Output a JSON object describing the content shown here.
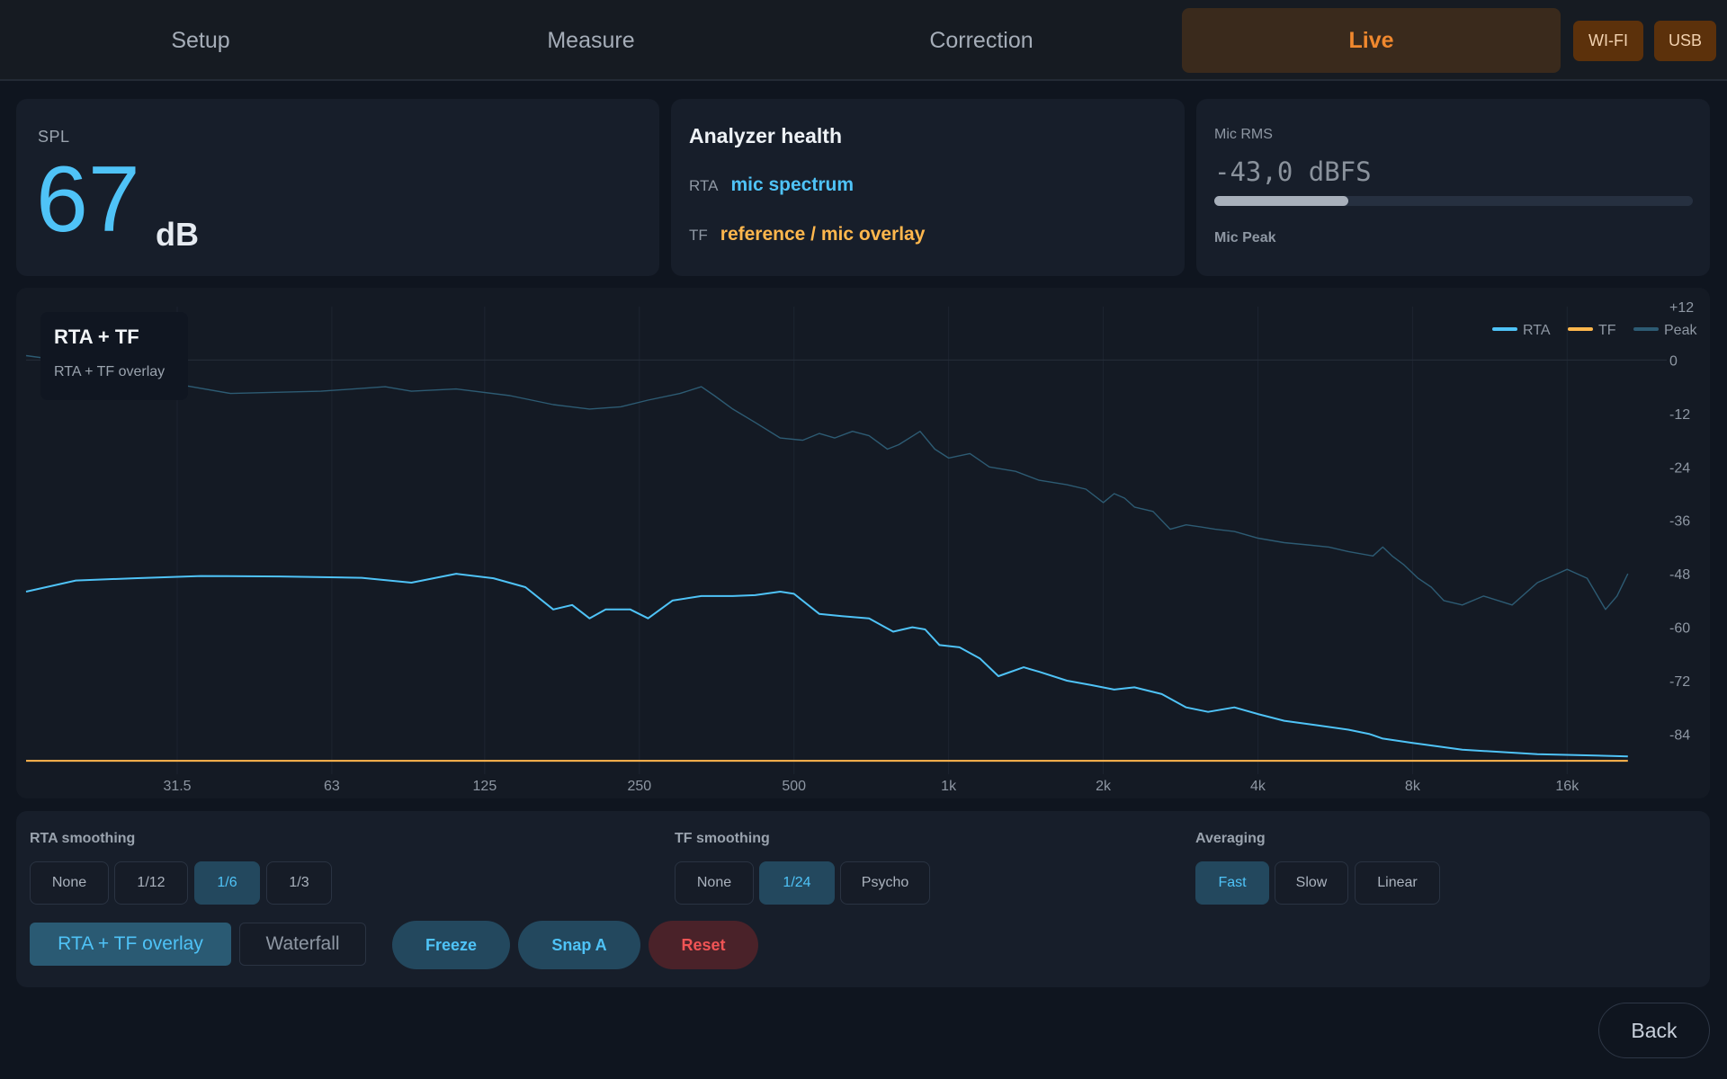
{
  "nav": {
    "tabs": [
      {
        "label": "Setup",
        "active": false
      },
      {
        "label": "Measure",
        "active": false
      },
      {
        "label": "Correction",
        "active": false
      },
      {
        "label": "Live",
        "active": true
      }
    ],
    "wifi_label": "WI-FI",
    "usb_label": "USB"
  },
  "spl": {
    "label": "SPL",
    "value": "67",
    "unit": "dB"
  },
  "analyzer_health": {
    "title": "Analyzer health",
    "rta_key": "RTA",
    "rta_value": "mic spectrum",
    "tf_key": "TF",
    "tf_value": "reference / mic overlay"
  },
  "mic": {
    "rms_label": "Mic RMS",
    "rms_value": "-43,0 dBFS",
    "rms_level_fraction": 0.28,
    "peak_label": "Mic Peak"
  },
  "chart_badge": {
    "title": "RTA + TF",
    "subtitle": "RTA + TF overlay"
  },
  "chart_data": {
    "type": "line",
    "x_scale": "log",
    "xlim": [
      16,
      25000
    ],
    "ylim": [
      -93,
      12
    ],
    "x_ticks": [
      {
        "value": 31.5,
        "label": "31.5"
      },
      {
        "value": 63,
        "label": "63"
      },
      {
        "value": 125,
        "label": "125"
      },
      {
        "value": 250,
        "label": "250"
      },
      {
        "value": 500,
        "label": "500"
      },
      {
        "value": 1000,
        "label": "1k"
      },
      {
        "value": 2000,
        "label": "2k"
      },
      {
        "value": 4000,
        "label": "4k"
      },
      {
        "value": 8000,
        "label": "8k"
      },
      {
        "value": 16000,
        "label": "16k"
      }
    ],
    "y_ticks": [
      {
        "value": 12,
        "label": "+12"
      },
      {
        "value": 0,
        "label": "0"
      },
      {
        "value": -12,
        "label": "-12"
      },
      {
        "value": -24,
        "label": "-24"
      },
      {
        "value": -36,
        "label": "-36"
      },
      {
        "value": -48,
        "label": "-48"
      },
      {
        "value": -60,
        "label": "-60"
      },
      {
        "value": -72,
        "label": "-72"
      },
      {
        "value": -84,
        "label": "-84"
      }
    ],
    "legend_position": "top-right",
    "grid": true,
    "series": [
      {
        "name": "RTA",
        "color": "#4fc3f7",
        "points": [
          [
            16,
            -52
          ],
          [
            20,
            -49.5
          ],
          [
            26,
            -49
          ],
          [
            35,
            -48.5
          ],
          [
            50,
            -48.6
          ],
          [
            72,
            -48.9
          ],
          [
            90,
            -50
          ],
          [
            110,
            -48
          ],
          [
            130,
            -49
          ],
          [
            150,
            -51
          ],
          [
            170,
            -56
          ],
          [
            185,
            -55
          ],
          [
            200,
            -58
          ],
          [
            215,
            -56
          ],
          [
            240,
            -56
          ],
          [
            260,
            -58
          ],
          [
            290,
            -54
          ],
          [
            330,
            -53
          ],
          [
            380,
            -53
          ],
          [
            420,
            -52.8
          ],
          [
            470,
            -52
          ],
          [
            500,
            -52.5
          ],
          [
            560,
            -57
          ],
          [
            620,
            -57.5
          ],
          [
            700,
            -58
          ],
          [
            780,
            -61
          ],
          [
            850,
            -60
          ],
          [
            900,
            -60.5
          ],
          [
            960,
            -64
          ],
          [
            1050,
            -64.5
          ],
          [
            1150,
            -67
          ],
          [
            1250,
            -71
          ],
          [
            1400,
            -69
          ],
          [
            1500,
            -70
          ],
          [
            1700,
            -72
          ],
          [
            1900,
            -73
          ],
          [
            2100,
            -74
          ],
          [
            2300,
            -73.5
          ],
          [
            2600,
            -75
          ],
          [
            2900,
            -78
          ],
          [
            3200,
            -79
          ],
          [
            3600,
            -78
          ],
          [
            4000,
            -79.5
          ],
          [
            4500,
            -81
          ],
          [
            5200,
            -82
          ],
          [
            6000,
            -83
          ],
          [
            6600,
            -84
          ],
          [
            7000,
            -85
          ],
          [
            8000,
            -86
          ],
          [
            10000,
            -87.5
          ],
          [
            14000,
            -88.5
          ],
          [
            21000,
            -89
          ]
        ]
      },
      {
        "name": "TF",
        "color": "#ffb74d",
        "points": [
          [
            16,
            -90
          ],
          [
            21000,
            -90
          ]
        ]
      },
      {
        "name": "Peak",
        "color": "#2d5b73",
        "points": [
          [
            16,
            1
          ],
          [
            20,
            -0.5
          ],
          [
            30,
            -5
          ],
          [
            40,
            -7.5
          ],
          [
            60,
            -7
          ],
          [
            80,
            -6
          ],
          [
            90,
            -7
          ],
          [
            110,
            -6.5
          ],
          [
            140,
            -8
          ],
          [
            170,
            -10
          ],
          [
            200,
            -11
          ],
          [
            230,
            -10.5
          ],
          [
            260,
            -9
          ],
          [
            300,
            -7.5
          ],
          [
            330,
            -6
          ],
          [
            350,
            -8
          ],
          [
            380,
            -11
          ],
          [
            420,
            -14
          ],
          [
            470,
            -17.5
          ],
          [
            520,
            -18
          ],
          [
            560,
            -16.5
          ],
          [
            600,
            -17.5
          ],
          [
            650,
            -16
          ],
          [
            700,
            -17
          ],
          [
            760,
            -20
          ],
          [
            800,
            -19
          ],
          [
            880,
            -16
          ],
          [
            940,
            -20
          ],
          [
            1000,
            -22
          ],
          [
            1100,
            -21
          ],
          [
            1200,
            -24
          ],
          [
            1350,
            -25
          ],
          [
            1500,
            -27
          ],
          [
            1700,
            -28
          ],
          [
            1850,
            -29
          ],
          [
            2000,
            -32
          ],
          [
            2100,
            -30
          ],
          [
            2200,
            -31
          ],
          [
            2300,
            -33
          ],
          [
            2500,
            -34
          ],
          [
            2700,
            -38
          ],
          [
            2900,
            -37
          ],
          [
            3100,
            -37.5
          ],
          [
            3300,
            -38
          ],
          [
            3600,
            -38.5
          ],
          [
            4000,
            -40
          ],
          [
            4500,
            -41
          ],
          [
            5000,
            -41.5
          ],
          [
            5500,
            -42
          ],
          [
            6000,
            -43
          ],
          [
            6700,
            -44
          ],
          [
            7000,
            -42
          ],
          [
            7300,
            -44
          ],
          [
            7700,
            -46
          ],
          [
            8200,
            -49
          ],
          [
            8700,
            -51
          ],
          [
            9200,
            -54
          ],
          [
            10000,
            -55
          ],
          [
            11000,
            -53
          ],
          [
            12500,
            -55
          ],
          [
            14000,
            -50
          ],
          [
            16000,
            -47
          ],
          [
            17500,
            -49
          ],
          [
            19000,
            -56
          ],
          [
            20000,
            -53
          ],
          [
            21000,
            -48
          ]
        ]
      }
    ]
  },
  "controls": {
    "rta_smoothing": {
      "title": "RTA smoothing",
      "options": [
        "None",
        "1/12",
        "1/6",
        "1/3"
      ],
      "selected": "1/6"
    },
    "tf_smoothing": {
      "title": "TF smoothing",
      "options": [
        "None",
        "1/24",
        "Psycho"
      ],
      "selected": "1/24"
    },
    "averaging": {
      "title": "Averaging",
      "options": [
        "Fast",
        "Slow",
        "Linear"
      ],
      "selected": "Fast"
    },
    "overlay_label": "RTA + TF overlay",
    "waterfall_label": "Waterfall",
    "freeze_label": "Freeze",
    "snap_label": "Snap A",
    "reset_label": "Reset"
  },
  "back_label": "Back"
}
